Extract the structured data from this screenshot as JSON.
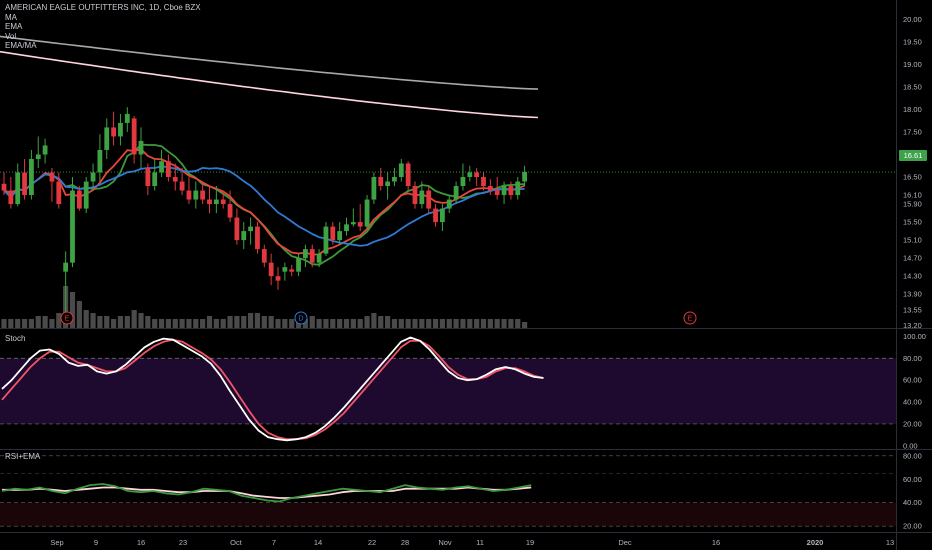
{
  "header": {
    "symbol_line": "AMERICAN EAGLE OUTFITTERS INC, 1D, Cboe BZX",
    "indicators": [
      "MA",
      "EMA",
      "Vol",
      "EMA/MA"
    ]
  },
  "last_price_tag": "16.61",
  "chart_data": [
    {
      "type": "candlestick",
      "title": "AMERICAN EAGLE OUTFITTERS INC, 1D, Cboe BZX",
      "ylim": [
        13.15,
        20.25
      ],
      "y_ticks": [
        "20.00",
        "19.50",
        "19.00",
        "18.50",
        "18.00",
        "17.50",
        "17.00",
        "16.50",
        "16.10",
        "15.90",
        "15.50",
        "15.10",
        "14.70",
        "14.30",
        "13.90",
        "13.55",
        "13.20"
      ],
      "x_ticks": [
        "Sep",
        "9",
        "16",
        "23",
        "Oct",
        "7",
        "14",
        "22",
        "28",
        "Nov",
        "11",
        "19",
        "Dec",
        "16",
        "2020",
        "13"
      ],
      "grid": false,
      "colors": {
        "up": "#3da343",
        "down": "#e2383f",
        "ma_gray": "#a8a8a8",
        "ma_pink": "#ffd5dc",
        "ema_red": "#e8473a",
        "ema_blue": "#2f7ad6",
        "ema_green": "#3d9a3c",
        "volume": "#4a4a4a"
      },
      "candles": [
        {
          "o": 16.35,
          "h": 16.6,
          "l": 16.1,
          "c": 16.2
        },
        {
          "o": 16.2,
          "h": 16.5,
          "l": 15.8,
          "c": 15.9
        },
        {
          "o": 15.9,
          "h": 16.8,
          "l": 15.85,
          "c": 16.6
        },
        {
          "o": 16.6,
          "h": 16.9,
          "l": 16.0,
          "c": 16.1
        },
        {
          "o": 16.1,
          "h": 17.1,
          "l": 16.0,
          "c": 16.9
        },
        {
          "o": 16.9,
          "h": 17.4,
          "l": 16.7,
          "c": 17.0
        },
        {
          "o": 17.0,
          "h": 17.35,
          "l": 16.8,
          "c": 17.2
        },
        {
          "o": 16.6,
          "h": 16.7,
          "l": 15.95,
          "c": 16.4
        },
        {
          "o": 16.4,
          "h": 16.6,
          "l": 15.8,
          "c": 15.9
        },
        {
          "o": 14.4,
          "h": 14.85,
          "l": 13.45,
          "c": 14.6
        },
        {
          "o": 14.6,
          "h": 16.5,
          "l": 14.5,
          "c": 16.2
        },
        {
          "o": 16.2,
          "h": 16.3,
          "l": 15.75,
          "c": 15.8
        },
        {
          "o": 15.8,
          "h": 16.5,
          "l": 15.7,
          "c": 16.4
        },
        {
          "o": 16.4,
          "h": 16.8,
          "l": 16.2,
          "c": 16.6
        },
        {
          "o": 16.6,
          "h": 17.45,
          "l": 16.4,
          "c": 17.1
        },
        {
          "o": 17.1,
          "h": 17.8,
          "l": 16.9,
          "c": 17.6
        },
        {
          "o": 17.6,
          "h": 17.95,
          "l": 17.2,
          "c": 17.4
        },
        {
          "o": 17.4,
          "h": 17.9,
          "l": 17.2,
          "c": 17.7
        },
        {
          "o": 17.7,
          "h": 18.05,
          "l": 17.5,
          "c": 17.9
        },
        {
          "o": 17.8,
          "h": 17.85,
          "l": 16.8,
          "c": 17.0
        },
        {
          "o": 17.0,
          "h": 17.6,
          "l": 16.7,
          "c": 17.3
        },
        {
          "o": 16.7,
          "h": 16.8,
          "l": 16.1,
          "c": 16.3
        },
        {
          "o": 16.3,
          "h": 16.9,
          "l": 16.2,
          "c": 16.6
        },
        {
          "o": 16.6,
          "h": 17.1,
          "l": 16.5,
          "c": 16.85
        },
        {
          "o": 16.85,
          "h": 17.0,
          "l": 16.4,
          "c": 16.5
        },
        {
          "o": 16.5,
          "h": 16.8,
          "l": 16.2,
          "c": 16.4
        },
        {
          "o": 16.4,
          "h": 16.7,
          "l": 16.1,
          "c": 16.2
        },
        {
          "o": 16.2,
          "h": 16.5,
          "l": 15.9,
          "c": 16.0
        },
        {
          "o": 16.0,
          "h": 16.4,
          "l": 15.8,
          "c": 16.2
        },
        {
          "o": 16.2,
          "h": 16.4,
          "l": 15.9,
          "c": 16.0
        },
        {
          "o": 16.0,
          "h": 16.3,
          "l": 15.7,
          "c": 15.9
        },
        {
          "o": 15.9,
          "h": 16.3,
          "l": 15.7,
          "c": 16.0
        },
        {
          "o": 16.0,
          "h": 16.2,
          "l": 15.8,
          "c": 15.9
        },
        {
          "o": 15.9,
          "h": 16.2,
          "l": 15.5,
          "c": 15.6
        },
        {
          "o": 15.6,
          "h": 15.8,
          "l": 15.0,
          "c": 15.1
        },
        {
          "o": 15.1,
          "h": 15.5,
          "l": 14.9,
          "c": 15.3
        },
        {
          "o": 15.3,
          "h": 15.6,
          "l": 15.0,
          "c": 15.4
        },
        {
          "o": 15.4,
          "h": 15.5,
          "l": 14.8,
          "c": 14.9
        },
        {
          "o": 14.9,
          "h": 15.0,
          "l": 14.5,
          "c": 14.6
        },
        {
          "o": 14.6,
          "h": 14.8,
          "l": 14.1,
          "c": 14.3
        },
        {
          "o": 14.3,
          "h": 14.5,
          "l": 14.0,
          "c": 14.2
        },
        {
          "o": 14.4,
          "h": 14.6,
          "l": 14.2,
          "c": 14.5
        },
        {
          "o": 14.45,
          "h": 14.55,
          "l": 14.3,
          "c": 14.4
        },
        {
          "o": 14.4,
          "h": 14.8,
          "l": 14.3,
          "c": 14.7
        },
        {
          "o": 14.7,
          "h": 15.0,
          "l": 14.5,
          "c": 14.9
        },
        {
          "o": 14.9,
          "h": 15.0,
          "l": 14.5,
          "c": 14.6
        },
        {
          "o": 14.6,
          "h": 14.9,
          "l": 14.5,
          "c": 14.8
        },
        {
          "o": 14.8,
          "h": 15.5,
          "l": 14.75,
          "c": 15.4
        },
        {
          "o": 15.4,
          "h": 15.5,
          "l": 15.0,
          "c": 15.1
        },
        {
          "o": 15.1,
          "h": 15.5,
          "l": 15.0,
          "c": 15.3
        },
        {
          "o": 15.3,
          "h": 15.6,
          "l": 15.2,
          "c": 15.45
        },
        {
          "o": 15.45,
          "h": 15.8,
          "l": 15.4,
          "c": 15.5
        },
        {
          "o": 15.5,
          "h": 15.9,
          "l": 15.3,
          "c": 15.4
        },
        {
          "o": 15.4,
          "h": 16.1,
          "l": 15.35,
          "c": 16.0
        },
        {
          "o": 16.0,
          "h": 16.6,
          "l": 15.9,
          "c": 16.5
        },
        {
          "o": 16.5,
          "h": 16.7,
          "l": 16.2,
          "c": 16.3
        },
        {
          "o": 16.3,
          "h": 16.6,
          "l": 16.0,
          "c": 16.4
        },
        {
          "o": 16.4,
          "h": 16.7,
          "l": 16.3,
          "c": 16.5
        },
        {
          "o": 16.5,
          "h": 16.9,
          "l": 16.4,
          "c": 16.8
        },
        {
          "o": 16.8,
          "h": 16.85,
          "l": 16.2,
          "c": 16.3
        },
        {
          "o": 16.3,
          "h": 16.4,
          "l": 15.8,
          "c": 15.9
        },
        {
          "o": 15.9,
          "h": 16.4,
          "l": 15.8,
          "c": 16.2
        },
        {
          "o": 16.2,
          "h": 16.3,
          "l": 15.7,
          "c": 15.8
        },
        {
          "o": 15.8,
          "h": 15.9,
          "l": 15.4,
          "c": 15.5
        },
        {
          "o": 15.5,
          "h": 15.9,
          "l": 15.3,
          "c": 15.8
        },
        {
          "o": 15.8,
          "h": 16.1,
          "l": 15.7,
          "c": 16.0
        },
        {
          "o": 16.0,
          "h": 16.4,
          "l": 15.9,
          "c": 16.3
        },
        {
          "o": 16.3,
          "h": 16.8,
          "l": 16.2,
          "c": 16.5
        },
        {
          "o": 16.5,
          "h": 16.75,
          "l": 16.4,
          "c": 16.6
        },
        {
          "o": 16.6,
          "h": 16.7,
          "l": 16.3,
          "c": 16.5
        },
        {
          "o": 16.5,
          "h": 16.6,
          "l": 16.2,
          "c": 16.3
        },
        {
          "o": 16.3,
          "h": 16.45,
          "l": 16.1,
          "c": 16.2
        },
        {
          "o": 16.2,
          "h": 16.5,
          "l": 16.0,
          "c": 16.1
        },
        {
          "o": 16.1,
          "h": 16.4,
          "l": 15.9,
          "c": 16.3
        },
        {
          "o": 16.3,
          "h": 16.4,
          "l": 16.0,
          "c": 16.1
        },
        {
          "o": 16.1,
          "h": 16.5,
          "l": 16.0,
          "c": 16.4
        },
        {
          "o": 16.4,
          "h": 16.75,
          "l": 16.3,
          "c": 16.61
        }
      ],
      "volume": [
        3,
        3,
        3,
        3,
        3,
        4,
        4,
        3,
        5,
        14,
        12,
        9,
        6,
        5,
        4,
        4,
        3,
        4,
        4,
        6,
        5,
        4,
        3,
        3,
        3,
        3,
        3,
        3,
        3,
        3,
        4,
        3,
        3,
        4,
        4,
        4,
        5,
        5,
        4,
        4,
        3,
        3,
        3,
        3,
        3,
        4,
        3,
        3,
        3,
        3,
        3,
        3,
        3,
        4,
        5,
        4,
        4,
        3,
        3,
        3,
        3,
        3,
        3,
        3,
        3,
        3,
        3,
        3,
        3,
        3,
        3,
        3,
        3,
        3,
        3,
        3,
        2
      ],
      "ma_gray": {
        "start": 19.62,
        "end": 18.45
      },
      "ma_pink": {
        "start": 19.28,
        "end": 17.82
      },
      "events": [
        {
          "label": "E",
          "color": "#e2383f"
        },
        {
          "label": "D",
          "color": "#2f7ad6"
        },
        {
          "label": "E",
          "color": "#e2383f"
        }
      ]
    },
    {
      "type": "line",
      "title": "Stoch",
      "ylim": [
        -2,
        104
      ],
      "y_ticks": [
        "100.00",
        "80.00",
        "60.00",
        "40.00",
        "20.00",
        "0.00"
      ],
      "bands": [
        20,
        80
      ],
      "series": [
        {
          "color": "#ffffff",
          "values": [
            52,
            60,
            70,
            80,
            87,
            88,
            84,
            76,
            73,
            74,
            68,
            66,
            68,
            74,
            82,
            90,
            95,
            98,
            97,
            92,
            87,
            82,
            75,
            64,
            50,
            37,
            24,
            14,
            8,
            6,
            5,
            6,
            8,
            12,
            18,
            26,
            35,
            45,
            55,
            65,
            75,
            85,
            95,
            99,
            96,
            88,
            78,
            68,
            62,
            60,
            61,
            65,
            70,
            72,
            70,
            66,
            63,
            62
          ]
        },
        {
          "color": "#f05468",
          "values": [
            42,
            52,
            62,
            72,
            80,
            86,
            86,
            81,
            76,
            74,
            71,
            68,
            68,
            71,
            78,
            85,
            91,
            95,
            97,
            95,
            90,
            85,
            79,
            70,
            58,
            45,
            32,
            20,
            12,
            8,
            6,
            6,
            7,
            10,
            15,
            22,
            30,
            40,
            50,
            60,
            70,
            80,
            90,
            96,
            96,
            91,
            82,
            72,
            65,
            61,
            61,
            63,
            68,
            71,
            71,
            68,
            64,
            62
          ]
        }
      ]
    },
    {
      "type": "line",
      "title": "RSI+EMA",
      "ylim": [
        15,
        85
      ],
      "y_ticks": [
        "80.00",
        "60.00",
        "40.00",
        "20.00"
      ],
      "bands": [
        30,
        70
      ],
      "series": [
        {
          "color": "#3d9a3c",
          "values": [
            50,
            52,
            51,
            53,
            50,
            48,
            52,
            55,
            56,
            54,
            50,
            49,
            50,
            48,
            47,
            49,
            52,
            51,
            50,
            46,
            44,
            42,
            41,
            44,
            46,
            48,
            50,
            52,
            51,
            50,
            49,
            52,
            55,
            53,
            52,
            51,
            53,
            54,
            52,
            50,
            51,
            53,
            55
          ]
        },
        {
          "color": "#ffd5dc",
          "values": [
            51,
            51,
            51,
            52,
            51,
            50,
            51,
            52,
            53,
            53,
            52,
            51,
            51,
            50,
            49,
            49,
            50,
            50,
            50,
            48,
            46,
            45,
            44,
            44,
            45,
            46,
            47,
            49,
            50,
            50,
            50,
            50,
            52,
            52,
            52,
            52,
            52,
            53,
            52,
            51,
            51,
            52,
            53
          ]
        }
      ]
    }
  ]
}
